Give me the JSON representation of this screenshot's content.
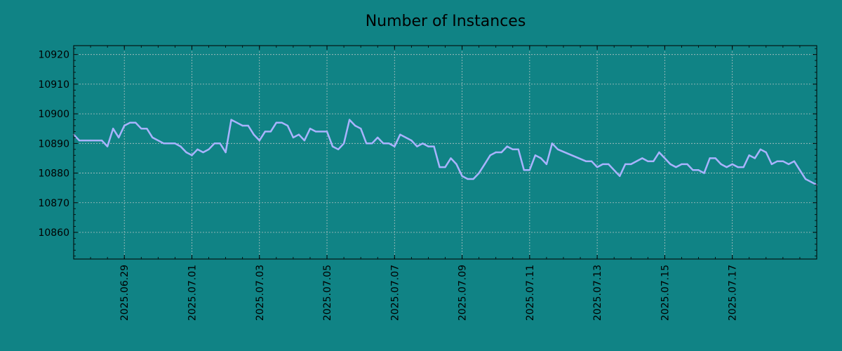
{
  "chart_data": {
    "type": "line",
    "title": "Number of Instances",
    "xlabel": "",
    "ylabel": "",
    "grid": true,
    "x_range": [
      "2025-06-27 12:00",
      "2025-07-19 12:00"
    ],
    "ylim": [
      10851,
      10923
    ],
    "x_ticks": [
      "2025.06.29",
      "2025.07.01",
      "2025.07.03",
      "2025.07.05",
      "2025.07.07",
      "2025.07.09",
      "2025.07.11",
      "2025.07.13",
      "2025.07.15",
      "2025.07.17"
    ],
    "y_ticks": [
      10860,
      10870,
      10880,
      10890,
      10900,
      10910,
      10920
    ],
    "colors": {
      "background": "#108385",
      "line": "#a9b3ff",
      "grid": "#b3c3c3"
    },
    "series": [
      {
        "name": "",
        "points": [
          [
            "2025-06-27 12:00",
            10893
          ],
          [
            "2025-06-27 16:00",
            10891
          ],
          [
            "2025-06-28 00:00",
            10891
          ],
          [
            "2025-06-28 08:00",
            10891
          ],
          [
            "2025-06-28 12:00",
            10889
          ],
          [
            "2025-06-28 16:00",
            10895
          ],
          [
            "2025-06-28 20:00",
            10892
          ],
          [
            "2025-06-29 00:00",
            10896
          ],
          [
            "2025-06-29 04:00",
            10897
          ],
          [
            "2025-06-29 08:00",
            10897
          ],
          [
            "2025-06-29 12:00",
            10895
          ],
          [
            "2025-06-29 16:00",
            10895
          ],
          [
            "2025-06-29 20:00",
            10892
          ],
          [
            "2025-06-30 04:00",
            10890
          ],
          [
            "2025-06-30 12:00",
            10890
          ],
          [
            "2025-06-30 16:00",
            10889
          ],
          [
            "2025-06-30 20:00",
            10887
          ],
          [
            "2025-07-01 00:00",
            10886
          ],
          [
            "2025-07-01 04:00",
            10888
          ],
          [
            "2025-07-01 08:00",
            10887
          ],
          [
            "2025-07-01 12:00",
            10888
          ],
          [
            "2025-07-01 16:00",
            10890
          ],
          [
            "2025-07-01 20:00",
            10890
          ],
          [
            "2025-07-02 00:00",
            10887
          ],
          [
            "2025-07-02 04:00",
            10898
          ],
          [
            "2025-07-02 08:00",
            10897
          ],
          [
            "2025-07-02 12:00",
            10896
          ],
          [
            "2025-07-02 16:00",
            10896
          ],
          [
            "2025-07-02 20:00",
            10893
          ],
          [
            "2025-07-03 00:00",
            10891
          ],
          [
            "2025-07-03 04:00",
            10894
          ],
          [
            "2025-07-03 08:00",
            10894
          ],
          [
            "2025-07-03 12:00",
            10897
          ],
          [
            "2025-07-03 16:00",
            10897
          ],
          [
            "2025-07-03 20:00",
            10896
          ],
          [
            "2025-07-04 00:00",
            10892
          ],
          [
            "2025-07-04 04:00",
            10893
          ],
          [
            "2025-07-04 08:00",
            10891
          ],
          [
            "2025-07-04 12:00",
            10895
          ],
          [
            "2025-07-04 16:00",
            10894
          ],
          [
            "2025-07-05 00:00",
            10894
          ],
          [
            "2025-07-05 04:00",
            10889
          ],
          [
            "2025-07-05 08:00",
            10888
          ],
          [
            "2025-07-05 12:00",
            10890
          ],
          [
            "2025-07-05 16:00",
            10898
          ],
          [
            "2025-07-05 20:00",
            10896
          ],
          [
            "2025-07-06 00:00",
            10895
          ],
          [
            "2025-07-06 04:00",
            10890
          ],
          [
            "2025-07-06 08:00",
            10890
          ],
          [
            "2025-07-06 12:00",
            10892
          ],
          [
            "2025-07-06 16:00",
            10890
          ],
          [
            "2025-07-06 20:00",
            10890
          ],
          [
            "2025-07-07 00:00",
            10889
          ],
          [
            "2025-07-07 04:00",
            10893
          ],
          [
            "2025-07-07 12:00",
            10891
          ],
          [
            "2025-07-07 16:00",
            10889
          ],
          [
            "2025-07-07 20:00",
            10890
          ],
          [
            "2025-07-08 00:00",
            10889
          ],
          [
            "2025-07-08 04:00",
            10889
          ],
          [
            "2025-07-08 08:00",
            10882
          ],
          [
            "2025-07-08 12:00",
            10882
          ],
          [
            "2025-07-08 16:00",
            10885
          ],
          [
            "2025-07-08 20:00",
            10883
          ],
          [
            "2025-07-09 00:00",
            10879
          ],
          [
            "2025-07-09 04:00",
            10878
          ],
          [
            "2025-07-09 08:00",
            10878
          ],
          [
            "2025-07-09 12:00",
            10880
          ],
          [
            "2025-07-09 16:00",
            10883
          ],
          [
            "2025-07-09 20:00",
            10886
          ],
          [
            "2025-07-10 00:00",
            10887
          ],
          [
            "2025-07-10 04:00",
            10887
          ],
          [
            "2025-07-10 08:00",
            10889
          ],
          [
            "2025-07-10 12:00",
            10888
          ],
          [
            "2025-07-10 16:00",
            10888
          ],
          [
            "2025-07-10 20:00",
            10881
          ],
          [
            "2025-07-11 00:00",
            10881
          ],
          [
            "2025-07-11 04:00",
            10886
          ],
          [
            "2025-07-11 08:00",
            10885
          ],
          [
            "2025-07-11 12:00",
            10883
          ],
          [
            "2025-07-11 16:00",
            10890
          ],
          [
            "2025-07-11 20:00",
            10888
          ],
          [
            "2025-07-12 16:00",
            10884
          ],
          [
            "2025-07-12 20:00",
            10884
          ],
          [
            "2025-07-13 00:00",
            10882
          ],
          [
            "2025-07-13 04:00",
            10883
          ],
          [
            "2025-07-13 08:00",
            10883
          ],
          [
            "2025-07-13 16:00",
            10879
          ],
          [
            "2025-07-13 20:00",
            10883
          ],
          [
            "2025-07-14 00:00",
            10883
          ],
          [
            "2025-07-14 08:00",
            10885
          ],
          [
            "2025-07-14 12:00",
            10884
          ],
          [
            "2025-07-14 16:00",
            10884
          ],
          [
            "2025-07-14 20:00",
            10887
          ],
          [
            "2025-07-15 00:00",
            10885
          ],
          [
            "2025-07-15 04:00",
            10883
          ],
          [
            "2025-07-15 08:00",
            10882
          ],
          [
            "2025-07-15 12:00",
            10883
          ],
          [
            "2025-07-15 16:00",
            10883
          ],
          [
            "2025-07-15 20:00",
            10881
          ],
          [
            "2025-07-16 00:00",
            10881
          ],
          [
            "2025-07-16 04:00",
            10880
          ],
          [
            "2025-07-16 08:00",
            10885
          ],
          [
            "2025-07-16 12:00",
            10885
          ],
          [
            "2025-07-16 16:00",
            10883
          ],
          [
            "2025-07-16 20:00",
            10882
          ],
          [
            "2025-07-17 00:00",
            10883
          ],
          [
            "2025-07-17 04:00",
            10882
          ],
          [
            "2025-07-17 08:00",
            10882
          ],
          [
            "2025-07-17 12:00",
            10886
          ],
          [
            "2025-07-17 16:00",
            10885
          ],
          [
            "2025-07-17 20:00",
            10888
          ],
          [
            "2025-07-18 00:00",
            10887
          ],
          [
            "2025-07-18 04:00",
            10883
          ],
          [
            "2025-07-18 08:00",
            10884
          ],
          [
            "2025-07-18 12:00",
            10884
          ],
          [
            "2025-07-18 16:00",
            10883
          ],
          [
            "2025-07-18 20:00",
            10884
          ],
          [
            "2025-07-19 00:00",
            10881
          ],
          [
            "2025-07-19 04:00",
            10878
          ],
          [
            "2025-07-19 08:00",
            10877
          ],
          [
            "2025-07-19 12:00",
            10876
          ]
        ]
      }
    ]
  }
}
